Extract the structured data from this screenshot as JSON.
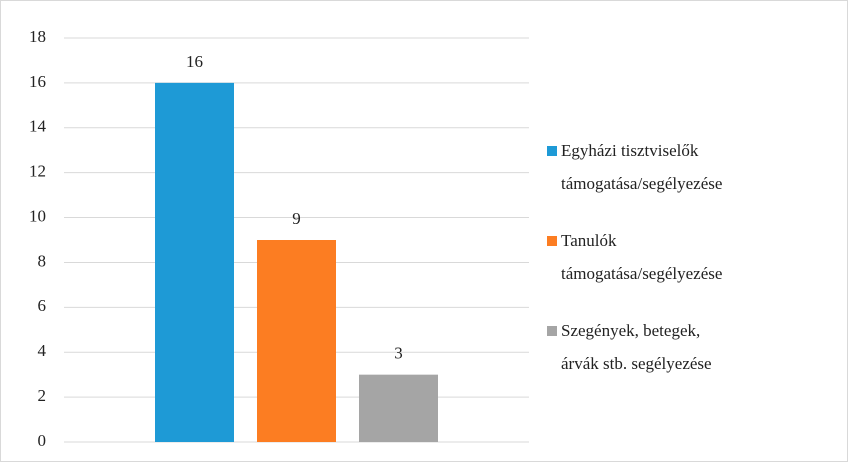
{
  "chart_data": {
    "type": "bar",
    "categories": [
      null
    ],
    "series": [
      {
        "name": "Egyházi tisztviselők\ntámogatása/segélyezése",
        "color": "#1e9ad6",
        "values": [
          16
        ]
      },
      {
        "name": "Tanulók\ntámogatása/segélyezése",
        "color": "#fc7d22",
        "values": [
          9
        ]
      },
      {
        "name": "Szegények, betegek,\nárvák stb. segélyezése",
        "color": "#a5a5a5",
        "values": [
          3
        ]
      }
    ],
    "ylim": [
      0,
      18
    ],
    "yticks": [
      0,
      2,
      4,
      6,
      8,
      10,
      12,
      14,
      16,
      18
    ],
    "grid": true,
    "legend": "right"
  }
}
